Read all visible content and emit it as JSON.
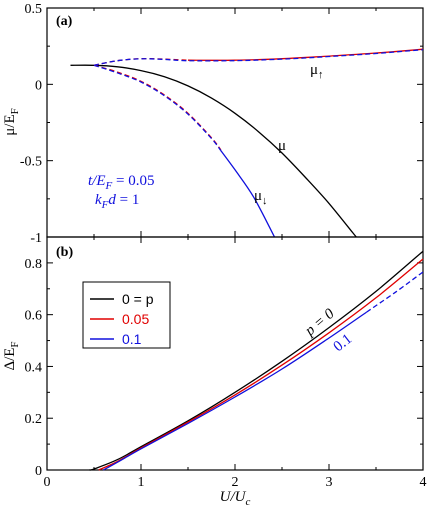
{
  "colors": {
    "black": "#000000",
    "red": "#e00000",
    "blue": "#1010dd"
  },
  "chart_data": [
    {
      "type": "line",
      "panel_label": "(a)",
      "ylabel": "μ/E_F",
      "xlim": [
        0,
        4
      ],
      "ylim": [
        -1,
        0.5
      ],
      "x_ticks": [
        0,
        1,
        2,
        3,
        4
      ],
      "y_ticks": [
        -1,
        -0.5,
        0,
        0.5
      ],
      "y_tick_labels": [
        "-1",
        "-0.5",
        "0",
        "0.5"
      ],
      "params_text": {
        "line1": "t/E_F = 0.05",
        "line2": "k_F d = 1"
      },
      "curve_labels": {
        "mu": "μ",
        "mu_up": "μ↑",
        "mu_down": "μ↓"
      },
      "series": [
        {
          "key": "mu",
          "color": "black",
          "style": "solid",
          "x": [
            0.25,
            0.5,
            0.75,
            1.0,
            1.25,
            1.5,
            1.75,
            2.0,
            2.25,
            2.5,
            2.75,
            3.0,
            3.25,
            3.29
          ],
          "y": [
            0.125,
            0.125,
            0.115,
            0.09,
            0.05,
            -0.01,
            -0.09,
            -0.19,
            -0.31,
            -0.45,
            -0.61,
            -0.78,
            -0.97,
            -1.0
          ]
        },
        {
          "key": "mu_up_red",
          "color": "red",
          "style": "dashed",
          "x": [
            0.5,
            0.75,
            1.0,
            1.25,
            1.5
          ],
          "y": [
            0.125,
            0.155,
            0.168,
            0.165,
            0.158
          ]
        },
        {
          "key": "mu_up_red_solid",
          "color": "red",
          "style": "solid",
          "x": [
            1.5,
            2.0,
            2.5,
            3.0,
            3.5,
            4.0
          ],
          "y": [
            0.158,
            0.158,
            0.168,
            0.185,
            0.205,
            0.23
          ]
        },
        {
          "key": "mu_up_blue",
          "color": "blue",
          "style": "dashed",
          "x": [
            0.5,
            0.75,
            1.0,
            1.25,
            1.5,
            2.0,
            2.5,
            3.0,
            3.5,
            4.0
          ],
          "y": [
            0.125,
            0.155,
            0.167,
            0.163,
            0.155,
            0.155,
            0.165,
            0.182,
            0.202,
            0.227
          ]
        },
        {
          "key": "mu_down_red",
          "color": "red",
          "style": "dashed",
          "x": [
            0.5,
            0.75,
            1.0,
            1.25,
            1.5,
            1.75,
            1.85
          ],
          "y": [
            0.125,
            0.08,
            0.02,
            -0.07,
            -0.19,
            -0.35,
            -0.43
          ]
        },
        {
          "key": "mu_down_blue_dash",
          "color": "blue",
          "style": "dashed",
          "x": [
            0.5,
            0.75,
            1.0,
            1.25,
            1.5,
            1.75,
            1.85
          ],
          "y": [
            0.125,
            0.075,
            0.015,
            -0.075,
            -0.195,
            -0.355,
            -0.435
          ]
        },
        {
          "key": "mu_down_blue",
          "color": "blue",
          "style": "solid",
          "x": [
            1.85,
            2.0,
            2.2,
            2.42
          ],
          "y": [
            -0.435,
            -0.56,
            -0.74,
            -1.0
          ]
        }
      ]
    },
    {
      "type": "line",
      "panel_label": "(b)",
      "ylabel": "Δ/E_F",
      "xlabel": "U/U_c",
      "xlim": [
        0,
        4
      ],
      "ylim": [
        0,
        0.9
      ],
      "x_ticks": [
        0,
        1,
        2,
        3,
        4
      ],
      "y_ticks": [
        0,
        0.2,
        0.4,
        0.6,
        0.8
      ],
      "x_tick_labels": [
        "0",
        "1",
        "2",
        "3",
        "4"
      ],
      "y_tick_labels": [
        "0",
        "0.2",
        "0.4",
        "0.6",
        "0.8"
      ],
      "legend": [
        {
          "text": "0 = p",
          "color": "black"
        },
        {
          "text": "0.05",
          "color": "red"
        },
        {
          "text": "0.1",
          "color": "blue"
        }
      ],
      "curve_labels": {
        "p0": "p = 0",
        "p01": "0.1"
      },
      "series": [
        {
          "name": "0 = p",
          "color": "black",
          "style": "solid",
          "x": [
            0.45,
            0.5,
            0.75,
            1.0,
            1.5,
            2.0,
            2.5,
            3.0,
            3.5,
            4.0
          ],
          "y": [
            0.0,
            0.004,
            0.04,
            0.09,
            0.19,
            0.3,
            0.42,
            0.55,
            0.69,
            0.845
          ]
        },
        {
          "name": "0.05",
          "color": "red",
          "style": "solid",
          "x": [
            0.55,
            0.75,
            1.0,
            1.5,
            2.0,
            2.5,
            3.0,
            3.5,
            4.0
          ],
          "y": [
            0.0,
            0.033,
            0.085,
            0.185,
            0.29,
            0.405,
            0.53,
            0.665,
            0.815
          ]
        },
        {
          "name": "0.1",
          "color": "blue",
          "style": "solid",
          "x": [
            0.6,
            0.75,
            1.0,
            1.5,
            2.0,
            2.5,
            3.0,
            3.4
          ],
          "y": [
            0.0,
            0.03,
            0.082,
            0.18,
            0.282,
            0.39,
            0.51,
            0.61
          ]
        },
        {
          "name": "0.1",
          "color": "blue",
          "style": "dashed",
          "x": [
            3.4,
            3.7,
            4.0
          ],
          "y": [
            0.61,
            0.685,
            0.765
          ]
        }
      ]
    }
  ]
}
